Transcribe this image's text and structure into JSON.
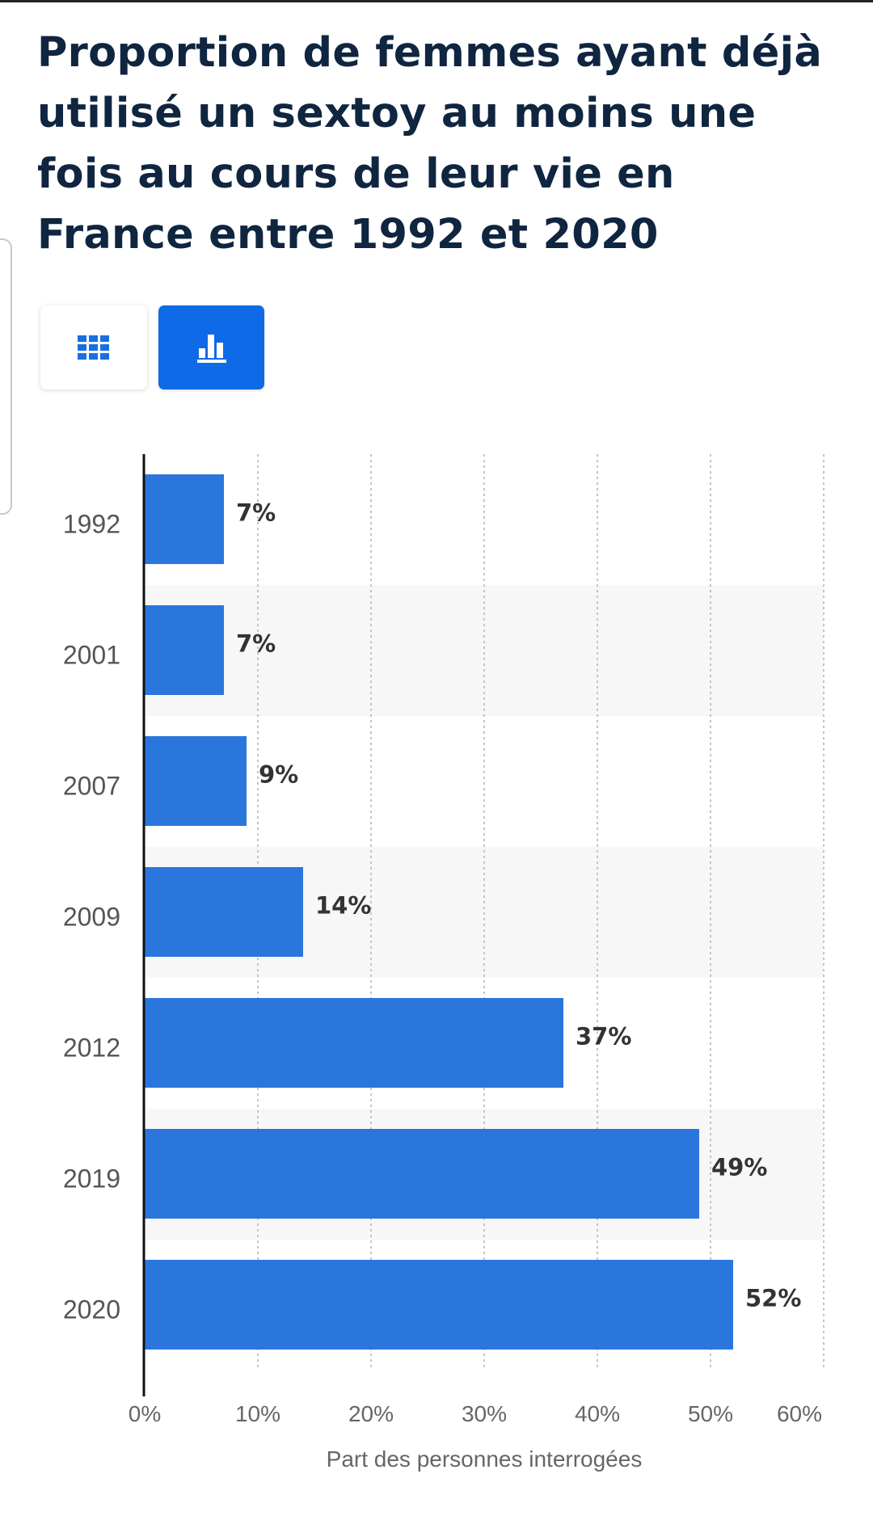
{
  "title": "Proportion de femmes ayant déjà utilisé un sextoy au moins une fois au cours de leur vie en France entre 1992 et 2020",
  "view_toggle": {
    "options": [
      {
        "icon": "table-grid-icon",
        "active": false
      },
      {
        "icon": "bar-chart-icon",
        "active": true
      }
    ]
  },
  "colors": {
    "bar": "#2a76dd",
    "toggle_active": "#0e6ae6",
    "title": "#0f2540",
    "band": "#f7f7f7"
  },
  "chart_data": {
    "type": "bar",
    "orientation": "horizontal",
    "categories": [
      "1992",
      "2001",
      "2007",
      "2009",
      "2012",
      "2019",
      "2020"
    ],
    "values": [
      7,
      7,
      9,
      14,
      37,
      49,
      52
    ],
    "value_labels": [
      "7%",
      "7%",
      "9%",
      "14%",
      "37%",
      "49%",
      "52%"
    ],
    "xlabel": "Part des personnes interrogées",
    "xlim": [
      0,
      60
    ],
    "x_ticks": [
      "0%",
      "10%",
      "20%",
      "30%",
      "40%",
      "50%",
      "60%"
    ],
    "grid": true,
    "legend": "none"
  }
}
